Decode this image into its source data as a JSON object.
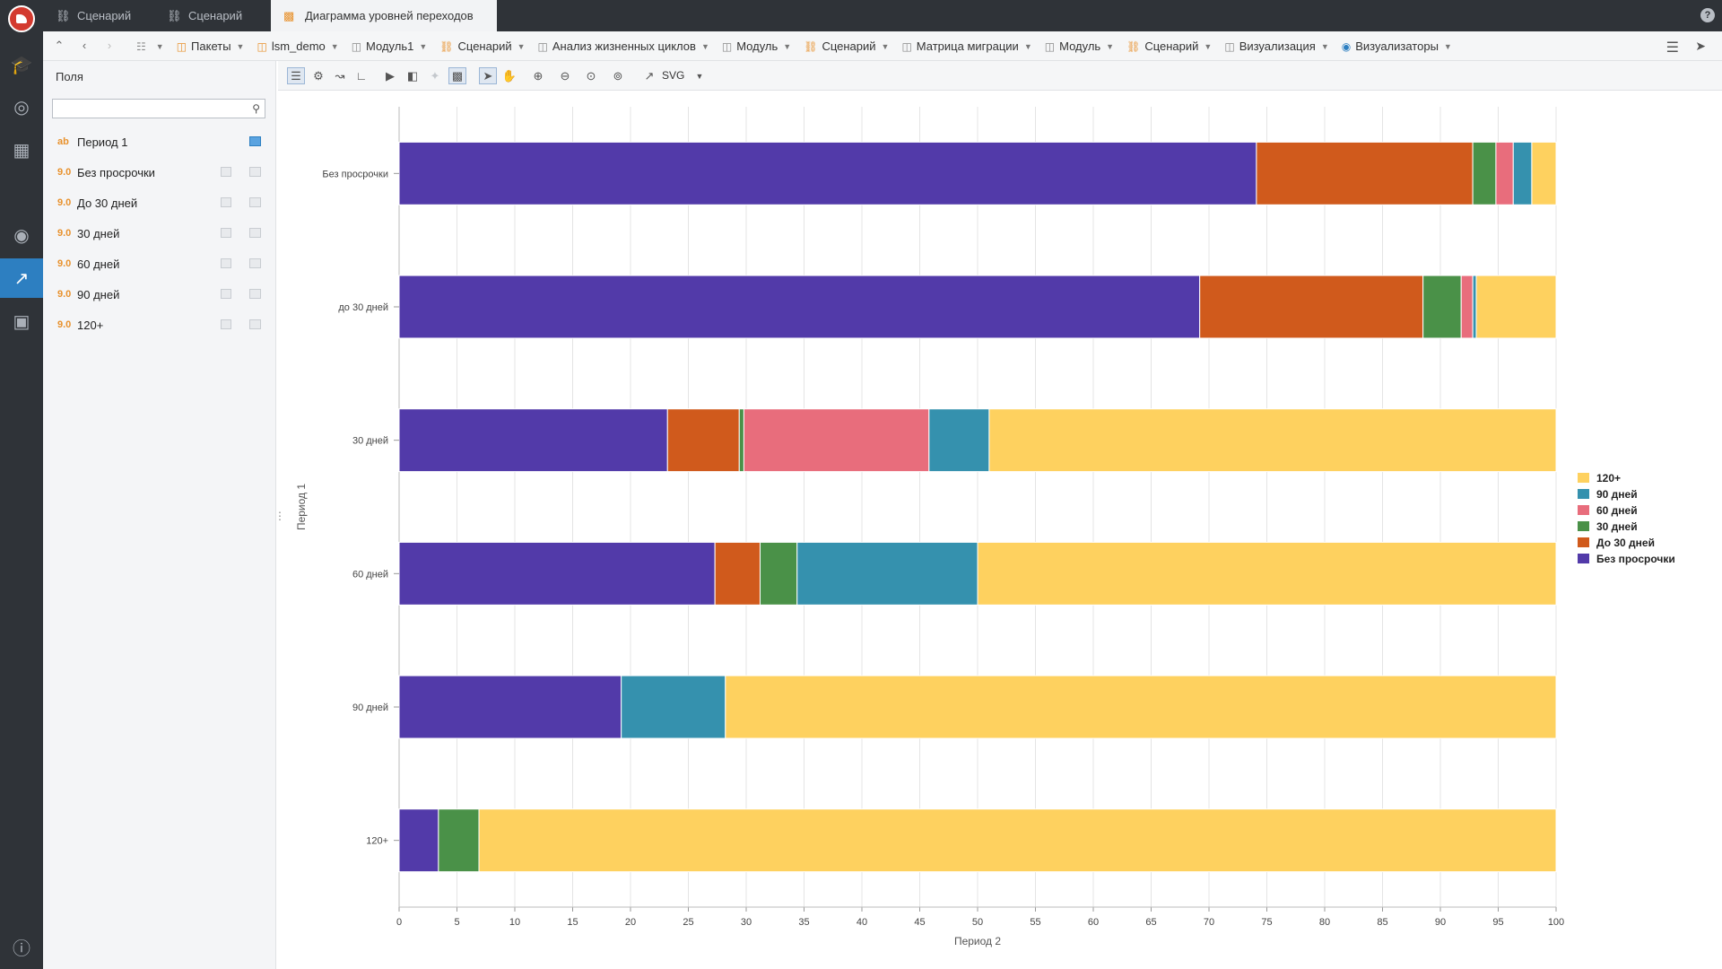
{
  "tabs": [
    {
      "label": "Сценарий",
      "icon": "scenario-icon",
      "active": false
    },
    {
      "label": "Сценарий",
      "icon": "scenario-icon",
      "active": false
    },
    {
      "label": "Диаграмма уровней переходов",
      "icon": "chart-icon",
      "active": true
    }
  ],
  "breadcrumbs": [
    {
      "label": "",
      "icon": "hierarchy-icon"
    },
    {
      "label": "Пакеты",
      "icon": "package-icon"
    },
    {
      "label": "lsm_demo",
      "icon": "package-icon"
    },
    {
      "label": "Модуль1",
      "icon": "module-icon"
    },
    {
      "label": "Сценарий",
      "icon": "scenario-icon"
    },
    {
      "label": "Анализ жизненных циклов",
      "icon": "module-icon"
    },
    {
      "label": "Модуль",
      "icon": "module-icon"
    },
    {
      "label": "Сценарий",
      "icon": "scenario-icon"
    },
    {
      "label": "Матрица миграции",
      "icon": "module-icon"
    },
    {
      "label": "Модуль",
      "icon": "module-icon"
    },
    {
      "label": "Сценарий",
      "icon": "scenario-icon"
    },
    {
      "label": "Визуализация",
      "icon": "module-icon"
    },
    {
      "label": "Визуализаторы",
      "icon": "eye-icon"
    }
  ],
  "fields_panel": {
    "title": "Поля",
    "search_placeholder": "",
    "fields": [
      {
        "type": "ab",
        "label": "Период 1"
      },
      {
        "type": "9.0",
        "label": "Без просрочки"
      },
      {
        "type": "9.0",
        "label": "До 30 дней"
      },
      {
        "type": "9.0",
        "label": "30 дней"
      },
      {
        "type": "9.0",
        "label": "60 дней"
      },
      {
        "type": "9.0",
        "label": "90 дней"
      },
      {
        "type": "9.0",
        "label": "120+"
      }
    ]
  },
  "toolbar": {
    "export_label": "SVG"
  },
  "chart_data": {
    "type": "bar",
    "orientation": "horizontal",
    "stacked": true,
    "categories": [
      "Без просрочки",
      "до 30 дней",
      "30 дней",
      "60 дней",
      "90 дней",
      "120+"
    ],
    "series": [
      {
        "name": "Без просрочки",
        "color": "#523aa9",
        "values": [
          74.1,
          69.2,
          23.2,
          27.3,
          19.2,
          3.4
        ]
      },
      {
        "name": "До 30 дней",
        "color": "#d05a1c",
        "values": [
          18.7,
          19.3,
          6.2,
          3.9,
          0,
          0
        ]
      },
      {
        "name": "30 дней",
        "color": "#4a9148",
        "values": [
          2.0,
          3.3,
          0.4,
          3.2,
          0,
          3.5
        ]
      },
      {
        "name": "60 дней",
        "color": "#e86d7c",
        "values": [
          1.5,
          1.0,
          16.0,
          0,
          0,
          0
        ]
      },
      {
        "name": "90 дней",
        "color": "#3591ae",
        "values": [
          1.6,
          0.3,
          5.2,
          15.6,
          9.0,
          0
        ]
      },
      {
        "name": "120+",
        "color": "#fed15f",
        "values": [
          2.1,
          6.9,
          49.0,
          50.0,
          71.8,
          93.1
        ]
      }
    ],
    "xlabel": "Период 2",
    "ylabel": "Период 1",
    "xlim": [
      0,
      100
    ],
    "xticks": [
      0,
      5,
      10,
      15,
      20,
      25,
      30,
      35,
      40,
      45,
      50,
      55,
      60,
      65,
      70,
      75,
      80,
      85,
      90,
      95,
      100
    ],
    "grid": true,
    "legend": {
      "position": "right",
      "order": [
        "120+",
        "90 дней",
        "60 дней",
        "30 дней",
        "До 30 дней",
        "Без просрочки"
      ]
    }
  }
}
